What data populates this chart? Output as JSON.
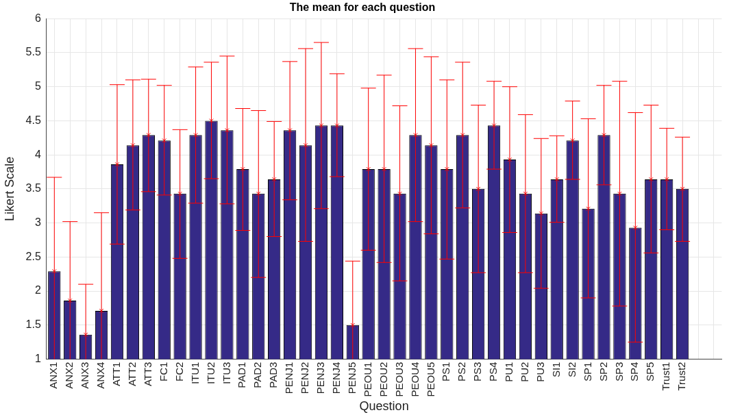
{
  "chart_data": {
    "type": "bar",
    "title": "The mean for each question",
    "xlabel": "Question",
    "ylabel": "Likert Scale",
    "categories": [
      "ANX1",
      "ANX2",
      "ANX3",
      "ANX4",
      "ATT1",
      "ATT2",
      "ATT3",
      "FC1",
      "FC2",
      "ITU1",
      "ITU2",
      "ITU3",
      "PAD1",
      "PAD2",
      "PAD3",
      "PENJ1",
      "PENJ2",
      "PENJ3",
      "PENJ4",
      "PENJ5",
      "PEOU1",
      "PEOU2",
      "PEOU3",
      "PEOU4",
      "PEOU5",
      "PS1",
      "PS2",
      "PS3",
      "PS4",
      "PU1",
      "PU2",
      "PU3",
      "SI1",
      "SI2",
      "SP1",
      "SP2",
      "SP3",
      "SP4",
      "SP5",
      "Trust1",
      "Trust2",
      null,
      null
    ],
    "series": [
      {
        "color": "#352a87",
        "values": [
          2.29,
          1.86,
          1.36,
          1.71,
          3.86,
          4.14,
          4.29,
          4.21,
          3.43,
          4.29,
          4.5,
          4.36,
          3.79,
          3.43,
          3.64,
          4.36,
          4.14,
          4.43,
          4.43,
          1.5,
          3.79,
          3.79,
          3.43,
          4.29,
          4.14,
          3.79,
          4.29,
          3.5,
          4.43,
          3.93,
          3.43,
          3.14,
          3.64,
          4.21,
          3.21,
          4.29,
          3.43,
          2.93,
          3.64,
          3.64,
          3.5,
          null,
          null
        ],
        "errors": [
          [
            1,
            3.67
          ],
          [
            1,
            3.02
          ],
          [
            1,
            2.1
          ],
          [
            1,
            3.15
          ],
          [
            2.69,
            5.03
          ],
          [
            3.19,
            5.1
          ],
          [
            3.46,
            5.11
          ],
          [
            3.41,
            5.02
          ],
          [
            2.48,
            4.37
          ],
          [
            3.29,
            5.29
          ],
          [
            3.65,
            5.36
          ],
          [
            3.28,
            5.45
          ],
          [
            2.89,
            4.68
          ],
          [
            2.2,
            4.65
          ],
          [
            2.8,
            4.49
          ],
          [
            3.34,
            5.37
          ],
          [
            2.73,
            5.56
          ],
          [
            3.21,
            5.65
          ],
          [
            3.68,
            5.19
          ],
          [
            1,
            2.44
          ],
          [
            2.6,
            4.98
          ],
          [
            2.42,
            5.17
          ],
          [
            2.15,
            4.72
          ],
          [
            3.02,
            5.56
          ],
          [
            2.84,
            5.44
          ],
          [
            2.47,
            5.1
          ],
          [
            3.22,
            5.36
          ],
          [
            2.27,
            4.73
          ],
          [
            3.79,
            5.08
          ],
          [
            2.86,
            5.0
          ],
          [
            2.27,
            4.59
          ],
          [
            2.04,
            4.24
          ],
          [
            3.01,
            4.28
          ],
          [
            3.64,
            4.79
          ],
          [
            1.9,
            4.53
          ],
          [
            3.56,
            5.02
          ],
          [
            1.78,
            5.08
          ],
          [
            1.25,
            4.62
          ],
          [
            2.56,
            4.73
          ],
          [
            2.9,
            4.39
          ],
          [
            2.73,
            4.26
          ],
          null,
          null
        ]
      },
      {
        "type": "scatter",
        "color": "#ff0000",
        "marker": "cross",
        "x": [
          "ANX1",
          "ANX2",
          "ANX3",
          "ANX4",
          "ATT1",
          "ATT2",
          "ATT3",
          "FC1",
          "FC2",
          "ITU1",
          "ITU2",
          "ITU3",
          "PAD1",
          "PAD2",
          "PAD3",
          "PENJ1",
          "PENJ2",
          "PENJ3",
          "PENJ4",
          "PENJ5",
          "PEOU1",
          "PEOU2",
          "PEOU3",
          "PEOU4",
          "PEOU5",
          "PS1",
          "PS2",
          "PS3",
          "PS4",
          "PU1",
          "PU2",
          "PU3",
          "SI1",
          "SI2",
          "SP1",
          "SP2",
          "SP3",
          "SP4",
          "SP5",
          "Trust1",
          "Trust2"
        ],
        "values": [
          2.29,
          1.86,
          1.36,
          1.71,
          3.86,
          4.14,
          4.29,
          4.21,
          3.43,
          4.29,
          4.5,
          4.36,
          3.79,
          3.43,
          3.64,
          4.36,
          4.14,
          4.43,
          4.43,
          1.5,
          3.79,
          3.79,
          3.43,
          4.29,
          4.14,
          3.79,
          4.29,
          3.5,
          4.43,
          3.93,
          3.43,
          3.14,
          3.64,
          4.21,
          3.21,
          4.29,
          3.43,
          2.93,
          3.64,
          3.64,
          3.5
        ]
      }
    ],
    "ylim": [
      1,
      6
    ],
    "yticks": [
      1,
      1.5,
      2,
      2.5,
      3,
      3.5,
      4,
      4.5,
      5,
      5.5,
      6
    ],
    "grid": true,
    "legend": false
  }
}
